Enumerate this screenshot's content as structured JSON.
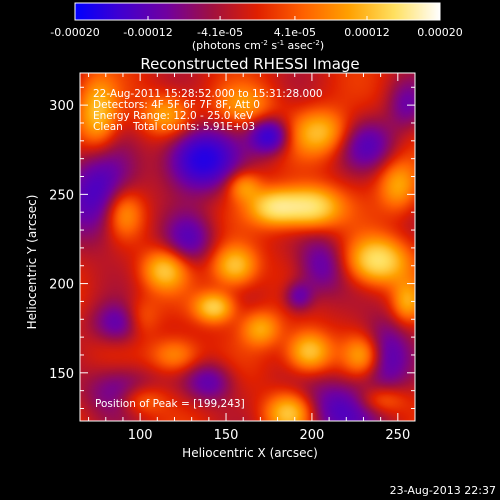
{
  "chart_data": {
    "type": "heatmap",
    "title": "Reconstructed RHESSI Image",
    "xlabel": "Heliocentric X (arcsec)",
    "ylabel": "Heliocentric Y (arcsec)",
    "xlim": [
      65,
      260
    ],
    "ylim": [
      123,
      318
    ],
    "x_ticks": [
      100,
      150,
      200,
      250
    ],
    "y_ticks": [
      150,
      200,
      250,
      300
    ],
    "colorbar": {
      "range": [
        -0.0002,
        0.0002
      ],
      "tick_values": [
        -0.0002,
        -0.00012,
        -4.1e-05,
        4.1e-05,
        0.00012,
        0.0002
      ],
      "tick_labels": [
        "-0.00020",
        "-0.00012",
        "-4.1e-05",
        "4.1e-05",
        "0.00012",
        "0.00020"
      ],
      "unit_label": "(photons cm",
      "unit_exp1": "-2",
      "unit_mid": " s",
      "unit_exp2": "-1",
      "unit_mid2": " asec",
      "unit_exp3": "-2",
      "unit_end": ")",
      "colormap": [
        "#0000ff",
        "#4000d0",
        "#7000a0",
        "#a01040",
        "#e02000",
        "#ff6000",
        "#ffa000",
        "#ffe060",
        "#ffffff"
      ]
    },
    "annotations": {
      "time_range": "22-Aug-2011 15:28:52.000 to 15:31:28.000",
      "detectors": "Detectors: 4F 5F 6F 7F 8F, Att 0",
      "energy": "Energy Range: 12.0 - 25.0 keV",
      "clean": "Clean",
      "total_counts": "Total counts: 5.91E+03",
      "peak": "Position of Peak = [199,243]"
    },
    "peak_position": [
      199,
      243
    ],
    "blobs": [
      {
        "x": 135,
        "y": 270,
        "sx": 14,
        "sy": 12,
        "v": -1.0
      },
      {
        "x": 76,
        "y": 250,
        "sx": 14,
        "sy": 18,
        "v": -0.7
      },
      {
        "x": 175,
        "y": 283,
        "sx": 8,
        "sy": 7,
        "v": -0.8
      },
      {
        "x": 232,
        "y": 278,
        "sx": 12,
        "sy": 10,
        "v": -0.5
      },
      {
        "x": 128,
        "y": 225,
        "sx": 10,
        "sy": 10,
        "v": -0.5
      },
      {
        "x": 205,
        "y": 210,
        "sx": 10,
        "sy": 12,
        "v": -0.5
      },
      {
        "x": 90,
        "y": 178,
        "sx": 12,
        "sy": 8,
        "v": -0.6
      },
      {
        "x": 140,
        "y": 145,
        "sx": 10,
        "sy": 8,
        "v": -0.5
      },
      {
        "x": 215,
        "y": 130,
        "sx": 20,
        "sy": 12,
        "v": -0.6
      },
      {
        "x": 242,
        "y": 160,
        "sx": 10,
        "sy": 14,
        "v": -0.6
      },
      {
        "x": 192,
        "y": 193,
        "sx": 6,
        "sy": 6,
        "v": -0.5
      },
      {
        "x": 88,
        "y": 140,
        "sx": 14,
        "sy": 10,
        "v": -0.5
      },
      {
        "x": 255,
        "y": 300,
        "sx": 8,
        "sy": 10,
        "v": -0.4
      },
      {
        "x": 199,
        "y": 243,
        "sx": 12,
        "sy": 8,
        "v": 1.0
      },
      {
        "x": 178,
        "y": 243,
        "sx": 10,
        "sy": 7,
        "v": 0.85
      },
      {
        "x": 238,
        "y": 213,
        "sx": 12,
        "sy": 9,
        "v": 0.95
      },
      {
        "x": 155,
        "y": 210,
        "sx": 9,
        "sy": 8,
        "v": 0.75
      },
      {
        "x": 114,
        "y": 208,
        "sx": 9,
        "sy": 8,
        "v": 0.7
      },
      {
        "x": 143,
        "y": 187,
        "sx": 8,
        "sy": 6,
        "v": 0.8
      },
      {
        "x": 198,
        "y": 162,
        "sx": 9,
        "sy": 8,
        "v": 0.8
      },
      {
        "x": 187,
        "y": 128,
        "sx": 10,
        "sy": 8,
        "v": 0.85
      },
      {
        "x": 90,
        "y": 240,
        "sx": 8,
        "sy": 10,
        "v": 0.6
      },
      {
        "x": 75,
        "y": 295,
        "sx": 8,
        "sy": 14,
        "v": 0.7
      },
      {
        "x": 115,
        "y": 295,
        "sx": 10,
        "sy": 8,
        "v": 0.55
      },
      {
        "x": 205,
        "y": 285,
        "sx": 12,
        "sy": 9,
        "v": 0.65
      },
      {
        "x": 250,
        "y": 255,
        "sx": 8,
        "sy": 10,
        "v": 0.55
      },
      {
        "x": 230,
        "y": 160,
        "sx": 8,
        "sy": 8,
        "v": 0.6
      },
      {
        "x": 160,
        "y": 255,
        "sx": 7,
        "sy": 6,
        "v": 0.5
      },
      {
        "x": 120,
        "y": 160,
        "sx": 10,
        "sy": 7,
        "v": 0.5
      },
      {
        "x": 100,
        "y": 180,
        "sx": 8,
        "sy": 8,
        "v": 0.5
      },
      {
        "x": 170,
        "y": 175,
        "sx": 8,
        "sy": 7,
        "v": 0.55
      },
      {
        "x": 255,
        "y": 190,
        "sx": 6,
        "sy": 8,
        "v": 0.5
      },
      {
        "x": 100,
        "y": 135,
        "sx": 10,
        "sy": 6,
        "v": 0.45
      },
      {
        "x": 240,
        "y": 135,
        "sx": 10,
        "sy": 6,
        "v": 0.5
      },
      {
        "x": 160,
        "y": 300,
        "sx": 12,
        "sy": 8,
        "v": 0.45
      }
    ]
  },
  "footer": {
    "timestamp": "23-Aug-2013 22:37"
  }
}
